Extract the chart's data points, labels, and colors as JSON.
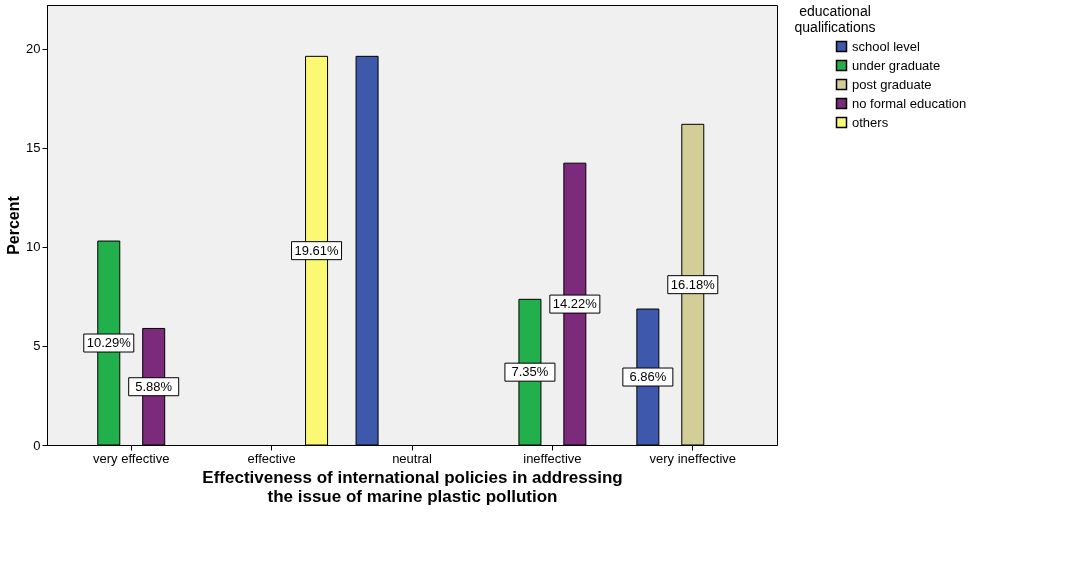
{
  "chart_data": {
    "type": "bar",
    "xlabel": "Effectiveness of international policies in addressing\nthe issue of marine plastic pollution",
    "ylabel": "Percent",
    "legend_title": "educational\nqualifications",
    "legend": "top right",
    "grid": false,
    "categories": [
      "very effective",
      "effective",
      "neutral",
      "ineffective",
      "very ineffective"
    ],
    "ylim": [
      0,
      22.2
    ],
    "yticks": [
      0,
      5,
      10,
      15,
      20
    ],
    "series": [
      {
        "name": "school level",
        "color": "#3e58ac",
        "values": [
          null,
          null,
          19.61,
          null,
          6.86
        ],
        "value_labels": [
          null,
          null,
          null,
          null,
          "6.86%"
        ]
      },
      {
        "name": "under graduate",
        "color": "#21b04b",
        "values": [
          10.29,
          null,
          null,
          7.35,
          null
        ],
        "value_labels": [
          "10.29%",
          null,
          null,
          "7.35%",
          null
        ]
      },
      {
        "name": "post graduate",
        "color": "#d3ce97",
        "values": [
          null,
          null,
          null,
          null,
          16.18
        ],
        "value_labels": [
          null,
          null,
          null,
          null,
          "16.18%"
        ]
      },
      {
        "name": "no formal education",
        "color": "#7b2a7c",
        "values": [
          5.88,
          null,
          null,
          14.22,
          null
        ],
        "value_labels": [
          "5.88%",
          null,
          null,
          "14.22%",
          null
        ]
      },
      {
        "name": "others",
        "color": "#fbf873",
        "values": [
          null,
          19.61,
          null,
          null,
          null
        ],
        "value_labels": [
          null,
          "19.61%",
          null,
          null,
          null
        ]
      }
    ]
  }
}
